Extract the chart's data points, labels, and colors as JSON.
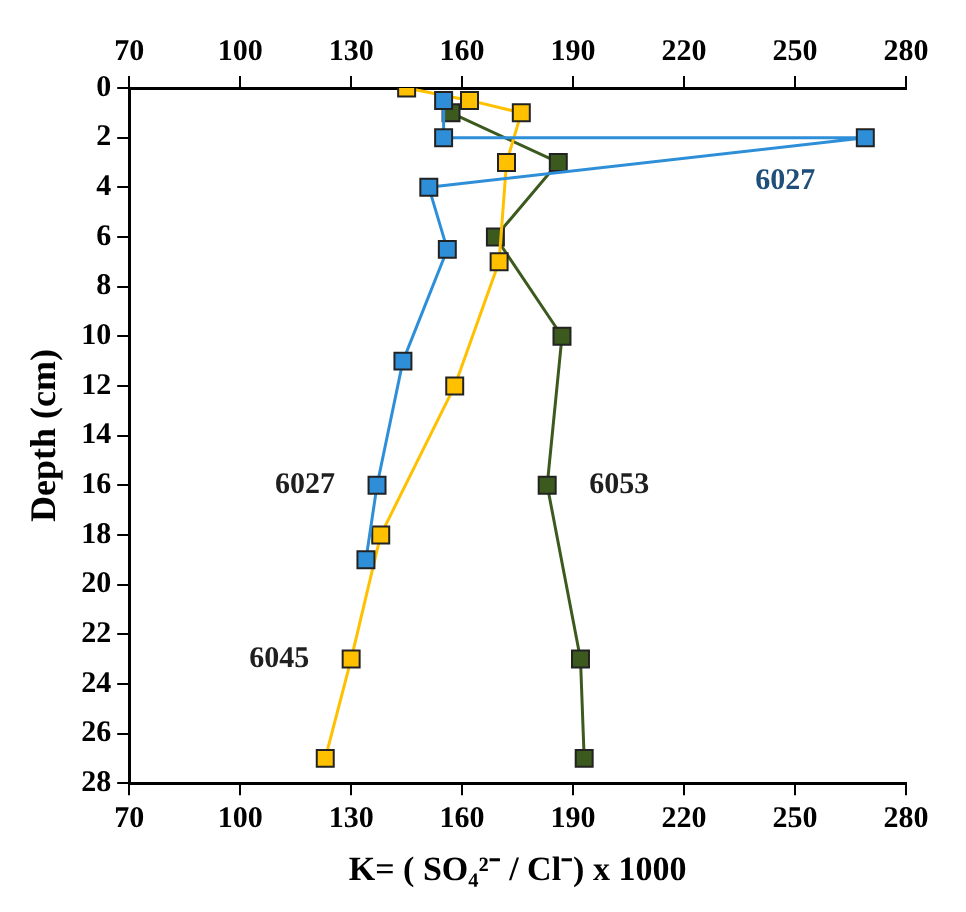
{
  "chart_data": {
    "type": "line",
    "xlabel": "K= ( SO₄²⁻ / Cl⁻) x 1000",
    "ylabel": "Depth (cm)",
    "xlim": [
      70,
      280
    ],
    "xticks": [
      70,
      100,
      130,
      160,
      190,
      220,
      250,
      280
    ],
    "x2lim": [
      70,
      280
    ],
    "x2ticks": [
      70,
      100,
      130,
      160,
      190,
      220,
      250,
      280
    ],
    "ylim": [
      28,
      0
    ],
    "yticks": [
      0,
      2,
      4,
      6,
      8,
      10,
      12,
      14,
      16,
      18,
      20,
      22,
      24,
      26,
      28
    ],
    "grid": false,
    "legend": false,
    "marker": "square",
    "line_style": "solid",
    "series": [
      {
        "name": "6027",
        "color": "#2e8fd8",
        "x": [
          155,
          155,
          269,
          151,
          156,
          144,
          137,
          134
        ],
        "values": [
          0.5,
          2,
          2,
          4,
          6.5,
          11,
          16,
          19
        ]
      },
      {
        "name": "6045",
        "color": "#ffc000",
        "x": [
          145,
          162,
          176,
          172,
          170,
          158,
          138,
          130,
          123
        ],
        "values": [
          0,
          0.5,
          1,
          3,
          7,
          12,
          18,
          23,
          27
        ]
      },
      {
        "name": "6053",
        "color": "#3d5a1e",
        "x": [
          157,
          186,
          169,
          187,
          183,
          192,
          193
        ],
        "values": [
          1,
          3,
          6,
          10,
          16,
          23,
          27
        ]
      }
    ],
    "annotations": [
      "6027"
    ]
  }
}
